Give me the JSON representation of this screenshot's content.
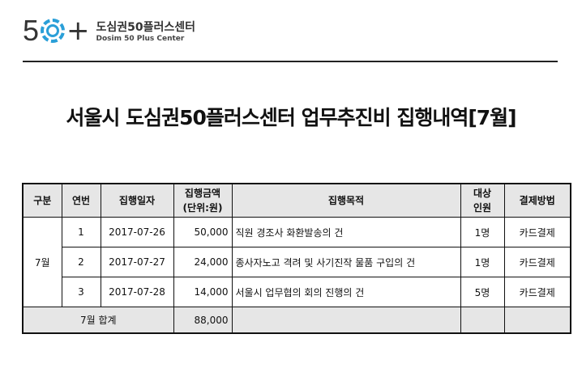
{
  "logo": {
    "number": "5",
    "plus": "+",
    "korean_name": "도심권50플러스센터",
    "english_name": "Dosim 50 Plus Center",
    "accent_color": "#2a9fd8"
  },
  "title": "서울시 도심권50플러스센터 업무추진비 집행내역[7월]",
  "table": {
    "headers": [
      "구분",
      "연번",
      "집행일자",
      "집행금액",
      "(단위:원)",
      "집행목적",
      "대상",
      "인원",
      "결제방법"
    ],
    "month": "7월",
    "rows": [
      {
        "no": "1",
        "date": "2017-07-26",
        "amount": "50,000",
        "purpose": "직원 경조사 화환발송의 건",
        "people": "1명",
        "payment": "카드결제"
      },
      {
        "no": "2",
        "date": "2017-07-27",
        "amount": "24,000",
        "purpose": "종사자노고 격려 및 사기진작 물품 구입의 건",
        "people": "1명",
        "payment": "카드결제"
      },
      {
        "no": "3",
        "date": "2017-07-28",
        "amount": "14,000",
        "purpose": "서울시 업무협의 회의 진행의 건",
        "people": "5명",
        "payment": "카드결제"
      }
    ],
    "total_label": "7월 합계",
    "total_amount": "88,000"
  }
}
